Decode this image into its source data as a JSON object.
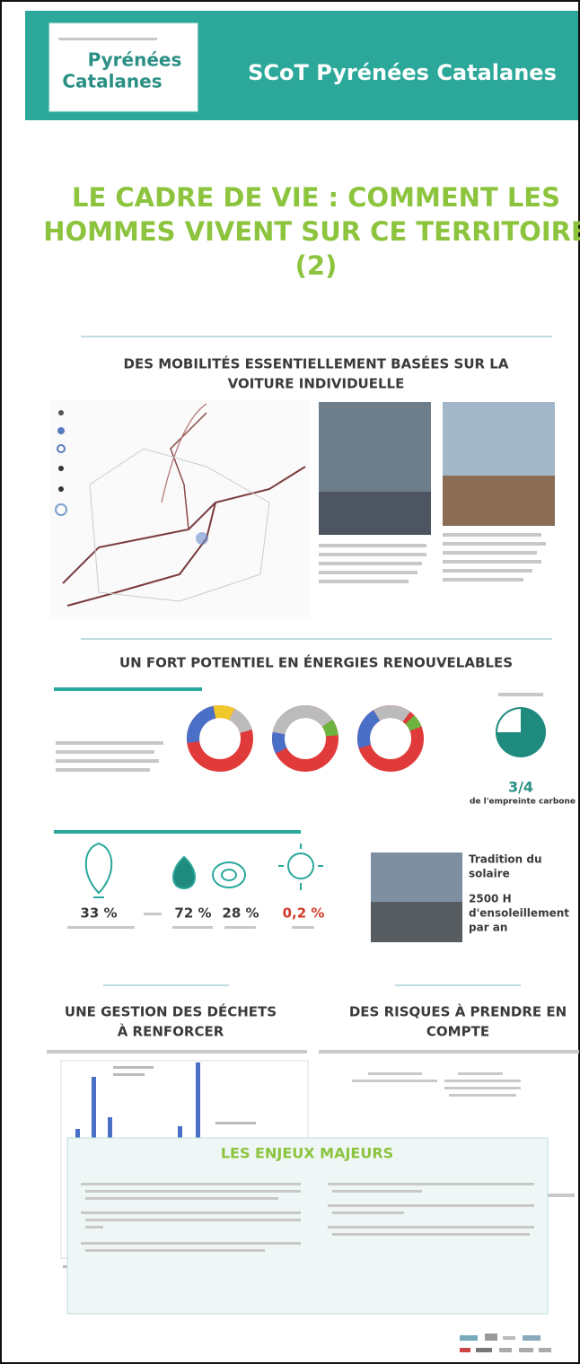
{
  "header": {
    "logo_line1": "Pyrénées",
    "logo_line2": "Catalanes",
    "title": "SCoT Pyrénées Catalanes"
  },
  "title": [
    "LE CADRE DE VIE : COMMENT LES",
    "HOMMES VIVENT SUR CE TERRITOIRE",
    "(2)"
  ],
  "mobility": {
    "heading": [
      "DES MOBILITÉS ESSENTIELLEMENT BASÉES SUR LA",
      "VOITURE INDIVIDUELLE"
    ]
  },
  "energy": {
    "heading": "UN FORT POTENTIEL EN ÉNERGIES RENOUVELABLES",
    "fraction": "3/4",
    "fraction_caption": "de l'empreinte carbone",
    "percentages": [
      "33 %",
      "72 %",
      "28 %",
      "0,2 %"
    ],
    "solar": [
      "Tradition du",
      "solaire",
      "2500 H",
      "d'ensoleillement",
      "par an"
    ]
  },
  "waste": {
    "heading": [
      "UNE GESTION DES DÉCHETS",
      "À RENFORCER"
    ]
  },
  "risks": {
    "heading": [
      "DES RISQUES À PRENDRE EN",
      "COMPTE"
    ]
  },
  "issues": {
    "heading": "LES ENJEUX MAJEURS"
  }
}
